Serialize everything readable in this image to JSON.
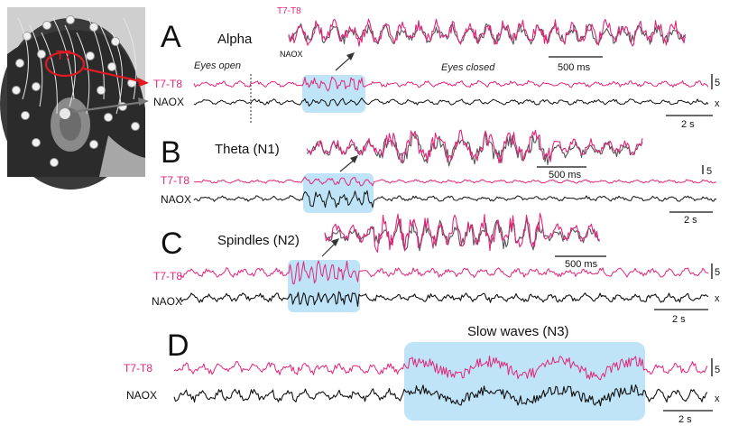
{
  "photo": {
    "electrode_label": "T7",
    "colors": {
      "highlight": "#e01b24",
      "pointer": "#e01b24"
    }
  },
  "channels": {
    "pink": "T7-T8",
    "black": "NAOX"
  },
  "colors": {
    "pink": "#e0267a",
    "black": "#111111",
    "highlight": "#bfe4f7",
    "inset_gray": "#555555"
  },
  "panels": [
    {
      "letter": "A",
      "title": "Alpha",
      "annotations": [
        "Eyes open",
        "Eyes closed"
      ],
      "inset_scale": "500 ms",
      "scale": "2 s",
      "inset_label_pink": "T7-T8",
      "inset_label_black": "NAOX",
      "cut_pink": "5",
      "cut_black": "x"
    },
    {
      "letter": "B",
      "title": "Theta (N1)",
      "inset_scale": "500 ms",
      "scale": "2 s",
      "cut_pink": "5"
    },
    {
      "letter": "C",
      "title": "Spindles (N2)",
      "inset_scale": "500 ms",
      "scale": "2 s",
      "cut_pink": "5",
      "cut_black": "x"
    },
    {
      "letter": "D",
      "title": "Slow waves (N3)",
      "scale": "2 s",
      "cut_pink": "5",
      "cut_black": "x"
    }
  ]
}
